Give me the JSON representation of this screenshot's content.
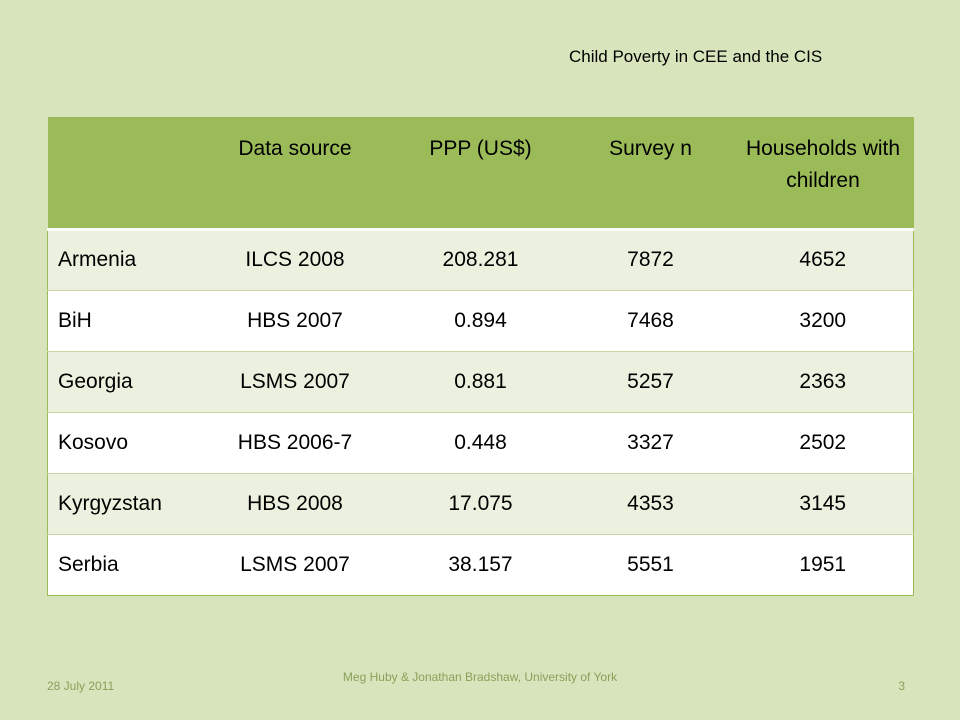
{
  "header": {
    "title": "Child Poverty in CEE and the CIS"
  },
  "table": {
    "columns": [
      "",
      "Data source",
      "PPP (US$)",
      "Survey n",
      "Households with children"
    ],
    "rows": [
      [
        "Armenia",
        "ILCS 2008",
        "208.281",
        "7872",
        "4652"
      ],
      [
        "BiH",
        "HBS 2007",
        "0.894",
        "7468",
        "3200"
      ],
      [
        "Georgia",
        "LSMS 2007",
        "0.881",
        "5257",
        "2363"
      ],
      [
        "Kosovo",
        "HBS 2006-7",
        "0.448",
        "3327",
        "2502"
      ],
      [
        "Kyrgyzstan",
        "HBS 2008",
        "17.075",
        "4353",
        "3145"
      ],
      [
        "Serbia",
        "LSMS 2007",
        "38.157",
        "5551",
        "1951"
      ]
    ]
  },
  "footer": {
    "date": "28 July 2011",
    "credit": "Meg Huby & Jonathan Bradshaw, University of York",
    "page": "3"
  }
}
